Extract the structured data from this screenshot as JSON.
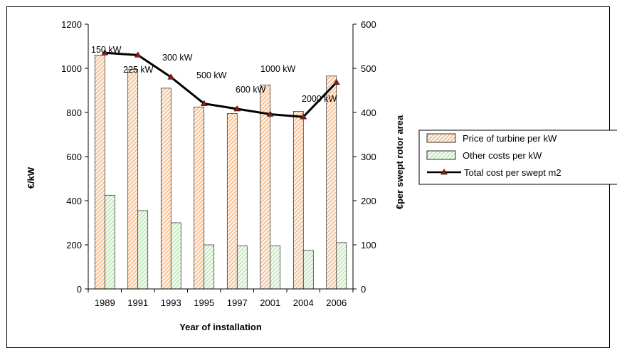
{
  "chart_data": {
    "type": "bar",
    "categories": [
      "1989",
      "1991",
      "1993",
      "1995",
      "1997",
      "2001",
      "2004",
      "2006"
    ],
    "xlabel": "Year of installation",
    "ylabel_left": "€/kW",
    "ylabel_right": "€per swept rotor area",
    "ylim_left": [
      0,
      1200
    ],
    "ylim_right": [
      0,
      600
    ],
    "yticks_left": [
      0,
      200,
      400,
      600,
      800,
      1000,
      1200
    ],
    "yticks_right": [
      0,
      100,
      200,
      300,
      400,
      500,
      600
    ],
    "legend_position": "right",
    "grid": false,
    "series": [
      {
        "name": "Price of turbine per kW",
        "kind": "bar",
        "axis": "left",
        "pattern": "diagonal-orange",
        "values": [
          1060,
          995,
          910,
          825,
          795,
          925,
          805,
          965
        ]
      },
      {
        "name": "Other costs per kW",
        "kind": "bar",
        "axis": "left",
        "pattern": "diagonal-green",
        "values": [
          425,
          355,
          300,
          200,
          195,
          195,
          175,
          210
        ]
      },
      {
        "name": "Total cost per swept m2",
        "kind": "line",
        "axis": "right",
        "color": "#000000",
        "marker_color": "#8b1a1a",
        "values": [
          535,
          530,
          480,
          420,
          408,
          396,
          390,
          468
        ]
      }
    ],
    "annotations": [
      "150 kW",
      "225 kW",
      "300 kW",
      "500 kW",
      "600 kW",
      "1000 kW",
      "2000 kW"
    ]
  }
}
